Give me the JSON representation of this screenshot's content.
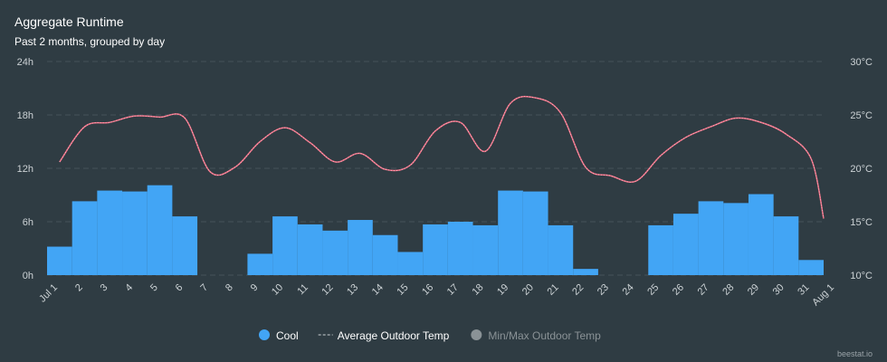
{
  "chart_data": {
    "type": "bar_line",
    "title": "Aggregate Runtime",
    "subtitle": "Past 2 months, grouped by day",
    "categories": [
      "Jul 1",
      "2",
      "3",
      "4",
      "5",
      "6",
      "7",
      "8",
      "9",
      "10",
      "11",
      "12",
      "13",
      "14",
      "15",
      "16",
      "17",
      "18",
      "19",
      "20",
      "21",
      "22",
      "23",
      "24",
      "25",
      "26",
      "27",
      "28",
      "29",
      "30",
      "31",
      "Aug 1"
    ],
    "series": [
      {
        "name": "Cool",
        "type": "bar",
        "color": "#42a5f5",
        "values": [
          3.2,
          8.3,
          9.5,
          9.4,
          10.1,
          6.6,
          0,
          0,
          2.4,
          6.6,
          5.7,
          5.0,
          6.2,
          4.5,
          2.6,
          5.7,
          6.0,
          5.6,
          9.5,
          9.4,
          5.6,
          0.7,
          0,
          0,
          5.6,
          6.9,
          8.3,
          8.1,
          9.1,
          6.6,
          1.7,
          null
        ]
      },
      {
        "name": "Average Outdoor Temp",
        "type": "line",
        "axis": "y2",
        "color": "#f06f85",
        "values": [
          20.6,
          23.9,
          24.3,
          24.9,
          24.8,
          24.7,
          19.7,
          20.1,
          22.5,
          23.8,
          22.4,
          20.6,
          21.4,
          19.9,
          20.3,
          23.5,
          24.3,
          21.6,
          26.1,
          26.6,
          25.2,
          20.1,
          19.3,
          18.8,
          21.2,
          22.9,
          23.9,
          24.7,
          24.3,
          23.2,
          20.9,
          15.3
        ]
      }
    ],
    "hidden_series": [
      {
        "name": "Min/Max Outdoor Temp",
        "color": "#8a9296"
      }
    ],
    "ylim": [
      0,
      24
    ],
    "yticks": [
      {
        "value": 0,
        "label": "0h"
      },
      {
        "value": 6,
        "label": "6h"
      },
      {
        "value": 12,
        "label": "12h"
      },
      {
        "value": 18,
        "label": "18h"
      },
      {
        "value": 24,
        "label": "24h"
      }
    ],
    "y2lim": [
      10,
      30
    ],
    "y2ticks": [
      {
        "value": 10,
        "label": "10°C"
      },
      {
        "value": 15,
        "label": "15°C"
      },
      {
        "value": 20,
        "label": "20°C"
      },
      {
        "value": 25,
        "label": "25°C"
      },
      {
        "value": 30,
        "label": "30°C"
      }
    ],
    "grid": true,
    "credit": "beestat.io"
  }
}
